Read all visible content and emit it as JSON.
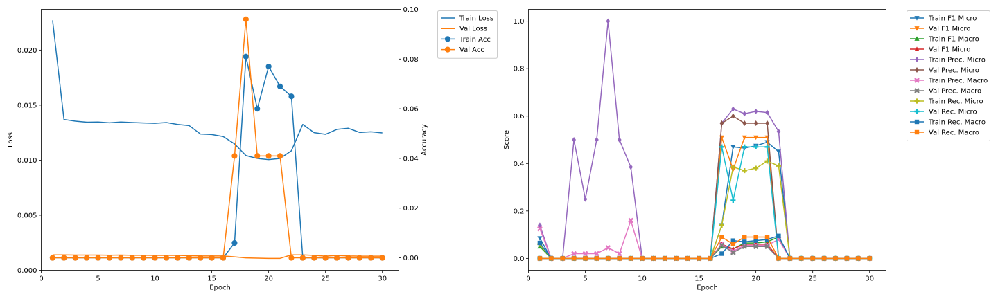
{
  "chart_data": [
    {
      "type": "line",
      "xlabel": "Epoch",
      "ylabel": "Loss",
      "y2label": "Accuracy",
      "xlim": [
        0,
        31.45
      ],
      "ylim": [
        0,
        0.0237
      ],
      "y2lim": [
        -0.005,
        0.1
      ],
      "xticks": [
        "0",
        "5",
        "10",
        "15",
        "20",
        "25",
        "30"
      ],
      "yticks": [
        "0.000",
        "0.005",
        "0.010",
        "0.015",
        "0.020"
      ],
      "y2ticks": [
        "0.00",
        "0.02",
        "0.04",
        "0.06",
        "0.08",
        "0.10"
      ],
      "grid": false,
      "legend_position": "outside-right",
      "x": [
        1,
        2,
        3,
        4,
        5,
        6,
        7,
        8,
        9,
        10,
        11,
        12,
        13,
        14,
        15,
        16,
        17,
        18,
        19,
        20,
        21,
        22,
        23,
        24,
        25,
        26,
        27,
        28,
        29,
        30
      ],
      "series": [
        {
          "name": "Train Loss",
          "axis": "left",
          "color": "#1f77b4",
          "marker": "none",
          "values": [
            0.0227,
            0.0137,
            0.01355,
            0.01345,
            0.01347,
            0.0134,
            0.01347,
            0.01342,
            0.01338,
            0.01335,
            0.01342,
            0.01325,
            0.01315,
            0.01238,
            0.01233,
            0.01215,
            0.01148,
            0.01042,
            0.01015,
            0.01005,
            0.01015,
            0.01085,
            0.01325,
            0.0125,
            0.01235,
            0.0128,
            0.0129,
            0.01252,
            0.01258,
            0.01248
          ]
        },
        {
          "name": "Val Loss",
          "axis": "left",
          "color": "#ff7f0e",
          "marker": "none",
          "values": [
            0.0014,
            0.0014,
            0.00138,
            0.00138,
            0.00138,
            0.00137,
            0.00138,
            0.00136,
            0.00136,
            0.00135,
            0.00135,
            0.00135,
            0.00132,
            0.0013,
            0.0013,
            0.0013,
            0.00122,
            0.00112,
            0.0011,
            0.00108,
            0.00108,
            0.0014,
            0.0014,
            0.00135,
            0.00128,
            0.00134,
            0.0013,
            0.00128,
            0.00128,
            0.00128
          ]
        },
        {
          "name": "Train Acc",
          "axis": "right",
          "color": "#1f77b4",
          "marker": "circle",
          "values": [
            0,
            0,
            0,
            0,
            0,
            0,
            0,
            0,
            0,
            0,
            0,
            0,
            0,
            0,
            0,
            0,
            0.006,
            0.081,
            0.06,
            0.077,
            0.069,
            0.065,
            0,
            0,
            0,
            0,
            0,
            0,
            0,
            0
          ]
        },
        {
          "name": "Val Acc",
          "axis": "right",
          "color": "#ff7f0e",
          "marker": "circle",
          "values": [
            0,
            0,
            0,
            0,
            0,
            0,
            0,
            0,
            0,
            0,
            0,
            0,
            0,
            0,
            0,
            0,
            0.041,
            0.096,
            0.041,
            0.041,
            0.041,
            0,
            0,
            0,
            0,
            0,
            0,
            0,
            0,
            0
          ]
        }
      ]
    },
    {
      "type": "line",
      "xlabel": "Epoch",
      "ylabel": "Score",
      "xlim": [
        0,
        31.45
      ],
      "ylim": [
        -0.05,
        1.05
      ],
      "xticks": [
        "0",
        "5",
        "10",
        "15",
        "20",
        "25",
        "30"
      ],
      "yticks": [
        "0.0",
        "0.2",
        "0.4",
        "0.6",
        "0.8",
        "1.0"
      ],
      "grid": false,
      "legend_position": "outside-right",
      "x": [
        1,
        2,
        3,
        4,
        5,
        6,
        7,
        8,
        9,
        10,
        11,
        12,
        13,
        14,
        15,
        16,
        17,
        18,
        19,
        20,
        21,
        22,
        23,
        24,
        25,
        26,
        27,
        28,
        29,
        30
      ],
      "series": [
        {
          "name": "Train F1 Micro",
          "color": "#1f77b4",
          "marker": "triangle_down",
          "values": [
            0.085,
            0,
            0,
            0,
            0,
            0,
            0,
            0,
            0,
            0,
            0,
            0,
            0,
            0,
            0,
            0,
            0.14,
            0.47,
            0.465,
            0.475,
            0.49,
            0.45,
            0,
            0,
            0,
            0,
            0,
            0,
            0,
            0
          ]
        },
        {
          "name": "Val F1 Micro",
          "color": "#ff7f0e",
          "marker": "triangle_down",
          "values": [
            0,
            0,
            0,
            0,
            0,
            0,
            0,
            0,
            0,
            0,
            0,
            0,
            0,
            0,
            0,
            0,
            0.51,
            0.375,
            0.51,
            0.51,
            0.51,
            0,
            0,
            0,
            0,
            0,
            0,
            0,
            0,
            0
          ]
        },
        {
          "name": "Train F1 Macro",
          "color": "#2ca02c",
          "marker": "triangle_up",
          "values": [
            0.05,
            0,
            0,
            0,
            0,
            0,
            0,
            0,
            0,
            0,
            0,
            0,
            0,
            0,
            0,
            0,
            0.05,
            0.04,
            0.065,
            0.065,
            0.07,
            0.09,
            0,
            0,
            0,
            0,
            0,
            0,
            0,
            0
          ]
        },
        {
          "name": "Val F1 Micro",
          "color": "#d62728",
          "marker": "triangle_up",
          "values": [
            0,
            0,
            0,
            0,
            0,
            0,
            0,
            0,
            0,
            0,
            0,
            0,
            0,
            0,
            0,
            0,
            0.06,
            0.04,
            0.06,
            0.06,
            0.06,
            0,
            0,
            0,
            0,
            0,
            0,
            0,
            0,
            0
          ]
        },
        {
          "name": "Train Prec. Micro",
          "color": "#9467bd",
          "marker": "diamond",
          "values": [
            0.14,
            0,
            0,
            0.5,
            0.25,
            0.5,
            1.0,
            0.5,
            0.385,
            0,
            0,
            0,
            0,
            0,
            0,
            0,
            0.57,
            0.63,
            0.61,
            0.62,
            0.615,
            0.535,
            0,
            0,
            0,
            0,
            0,
            0,
            0,
            0
          ]
        },
        {
          "name": "Val Prec. Micro",
          "color": "#8c564b",
          "marker": "diamond",
          "values": [
            0,
            0,
            0,
            0,
            0,
            0,
            0,
            0,
            0,
            0,
            0,
            0,
            0,
            0,
            0,
            0,
            0.57,
            0.6,
            0.57,
            0.57,
            0.57,
            0,
            0,
            0,
            0,
            0,
            0,
            0,
            0,
            0
          ]
        },
        {
          "name": "Train Prec. Macro",
          "color": "#e377c2",
          "marker": "x",
          "values": [
            0.125,
            0,
            0,
            0.02,
            0.02,
            0.02,
            0.045,
            0.02,
            0.16,
            0,
            0,
            0,
            0,
            0,
            0,
            0,
            0.06,
            0.03,
            0.055,
            0.055,
            0.055,
            0.08,
            0,
            0,
            0,
            0,
            0,
            0,
            0,
            0
          ]
        },
        {
          "name": "Val Prec. Macro",
          "color": "#7f7f7f",
          "marker": "x",
          "values": [
            0,
            0,
            0,
            0,
            0,
            0,
            0,
            0,
            0,
            0,
            0,
            0,
            0,
            0,
            0,
            0,
            0.055,
            0.025,
            0.05,
            0.05,
            0.05,
            0,
            0,
            0,
            0,
            0,
            0,
            0,
            0,
            0
          ]
        },
        {
          "name": "Train Rec. Micro",
          "color": "#bcbd22",
          "marker": "plus",
          "values": [
            0.06,
            0,
            0,
            0,
            0,
            0,
            0,
            0,
            0,
            0,
            0,
            0,
            0,
            0,
            0,
            0,
            0.14,
            0.385,
            0.37,
            0.38,
            0.41,
            0.39,
            0,
            0,
            0,
            0,
            0,
            0,
            0,
            0
          ]
        },
        {
          "name": "Val Rec. Micro",
          "color": "#17becf",
          "marker": "plus",
          "values": [
            0,
            0,
            0,
            0,
            0,
            0,
            0,
            0,
            0,
            0,
            0,
            0,
            0,
            0,
            0,
            0,
            0.47,
            0.245,
            0.47,
            0.47,
            0.47,
            0,
            0,
            0,
            0,
            0,
            0,
            0,
            0,
            0
          ]
        },
        {
          "name": "Train Rec. Macro",
          "color": "#1f77b4",
          "marker": "square",
          "values": [
            0.065,
            0,
            0,
            0,
            0,
            0,
            0,
            0,
            0,
            0,
            0,
            0,
            0,
            0,
            0,
            0,
            0.02,
            0.075,
            0.07,
            0.075,
            0.08,
            0.095,
            0,
            0,
            0,
            0,
            0,
            0,
            0,
            0
          ]
        },
        {
          "name": "Val Rec. Macro",
          "color": "#ff7f0e",
          "marker": "square",
          "values": [
            0,
            0,
            0,
            0,
            0,
            0,
            0,
            0,
            0,
            0,
            0,
            0,
            0,
            0,
            0,
            0,
            0.09,
            0.06,
            0.09,
            0.09,
            0.09,
            0,
            0,
            0,
            0,
            0,
            0,
            0,
            0,
            0
          ]
        }
      ]
    }
  ]
}
